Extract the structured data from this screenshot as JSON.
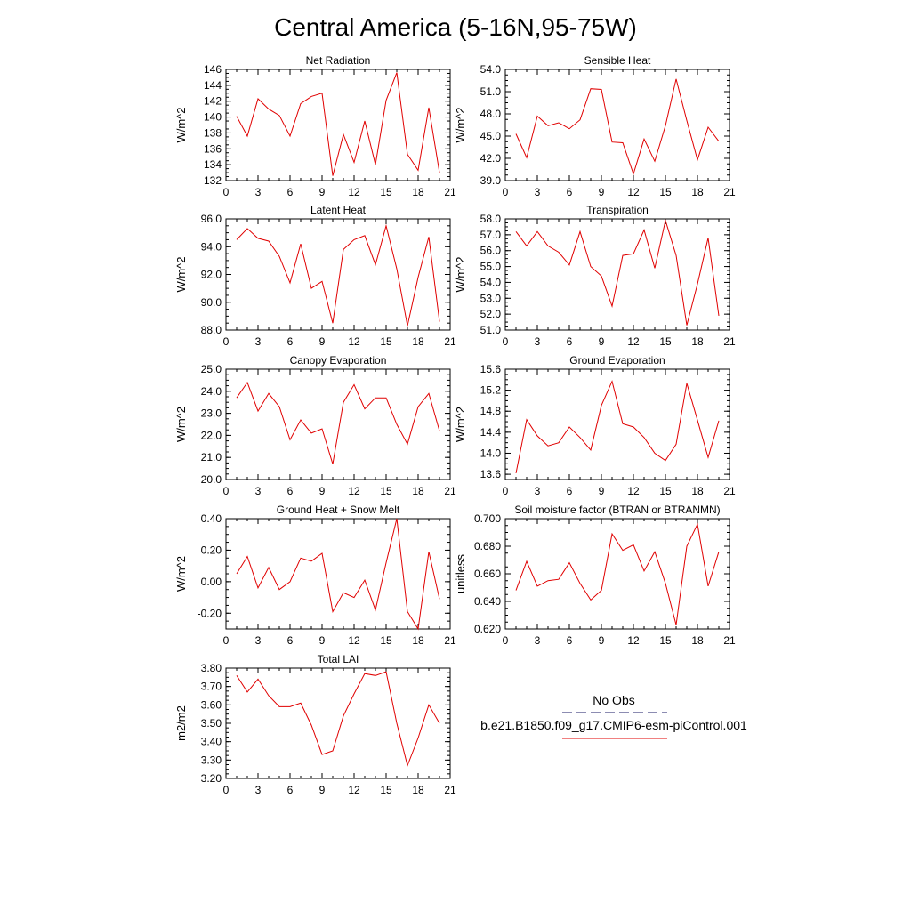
{
  "figure": {
    "title": "Central America (5-16N,95-75W)"
  },
  "legend": {
    "entries": [
      {
        "label": "No Obs",
        "color": "#1a1a66",
        "style": "dashed"
      },
      {
        "label": "b.e21.B1850.f09_g17.CMIP6-esm-piControl.001",
        "color": "#e00000",
        "style": "solid"
      }
    ]
  },
  "chart_data": [
    {
      "type": "line",
      "title": "Net Radiation",
      "xlabel": "",
      "ylabel": "W/m^2",
      "xlim": [
        0,
        21
      ],
      "ylim": [
        132,
        146
      ],
      "xticks": [
        "0",
        "3",
        "6",
        "9",
        "12",
        "15",
        "18",
        "21"
      ],
      "yticks": [
        "132",
        "134",
        "136",
        "138",
        "140",
        "142",
        "144",
        "146"
      ],
      "x": [
        1,
        2,
        3,
        4,
        5,
        6,
        7,
        8,
        9,
        10,
        11,
        12,
        13,
        14,
        15,
        16,
        17,
        18,
        19,
        20
      ],
      "series": [
        {
          "name": "b.e21.B1850.f09_g17.CMIP6-esm-piControl.001",
          "values": [
            140.1,
            137.6,
            142.3,
            141.0,
            140.2,
            137.6,
            141.7,
            142.6,
            143.0,
            132.6,
            137.8,
            134.3,
            139.5,
            134.0,
            142.1,
            145.6,
            135.3,
            133.3,
            141.2,
            133.0
          ]
        }
      ]
    },
    {
      "type": "line",
      "title": "Sensible Heat",
      "xlabel": "",
      "ylabel": "W/m^2",
      "xlim": [
        0,
        21
      ],
      "ylim": [
        39,
        54
      ],
      "xticks": [
        "0",
        "3",
        "6",
        "9",
        "12",
        "15",
        "18",
        "21"
      ],
      "yticks": [
        "39.0",
        "42.0",
        "45.0",
        "48.0",
        "51.0",
        "54.0"
      ],
      "x": [
        1,
        2,
        3,
        4,
        5,
        6,
        7,
        8,
        9,
        10,
        11,
        12,
        13,
        14,
        15,
        16,
        17,
        18,
        19,
        20
      ],
      "series": [
        {
          "name": "b.e21.B1850.f09_g17.CMIP6-esm-piControl.001",
          "values": [
            45.3,
            42.1,
            47.7,
            46.4,
            46.8,
            46.0,
            47.2,
            51.4,
            51.3,
            44.2,
            44.1,
            39.9,
            44.6,
            41.6,
            46.4,
            52.7,
            47.1,
            41.8,
            46.2,
            44.3
          ]
        }
      ]
    },
    {
      "type": "line",
      "title": "Latent Heat",
      "xlabel": "",
      "ylabel": "W/m^2",
      "xlim": [
        0,
        21
      ],
      "ylim": [
        88,
        96
      ],
      "xticks": [
        "0",
        "3",
        "6",
        "9",
        "12",
        "15",
        "18",
        "21"
      ],
      "yticks": [
        "88.0",
        "90.0",
        "92.0",
        "94.0",
        "96.0"
      ],
      "x": [
        1,
        2,
        3,
        4,
        5,
        6,
        7,
        8,
        9,
        10,
        11,
        12,
        13,
        14,
        15,
        16,
        17,
        18,
        19,
        20
      ],
      "series": [
        {
          "name": "b.e21.B1850.f09_g17.CMIP6-esm-piControl.001",
          "values": [
            94.5,
            95.3,
            94.6,
            94.4,
            93.3,
            91.4,
            94.2,
            91.0,
            91.5,
            88.5,
            93.8,
            94.5,
            94.8,
            92.7,
            95.5,
            92.4,
            88.3,
            91.8,
            94.7,
            88.6
          ]
        }
      ]
    },
    {
      "type": "line",
      "title": "Transpiration",
      "xlabel": "",
      "ylabel": "W/m^2",
      "xlim": [
        0,
        21
      ],
      "ylim": [
        51,
        58
      ],
      "xticks": [
        "0",
        "3",
        "6",
        "9",
        "12",
        "15",
        "18",
        "21"
      ],
      "yticks": [
        "51.0",
        "52.0",
        "53.0",
        "54.0",
        "55.0",
        "56.0",
        "57.0",
        "58.0"
      ],
      "x": [
        1,
        2,
        3,
        4,
        5,
        6,
        7,
        8,
        9,
        10,
        11,
        12,
        13,
        14,
        15,
        16,
        17,
        18,
        19,
        20
      ],
      "series": [
        {
          "name": "b.e21.B1850.f09_g17.CMIP6-esm-piControl.001",
          "values": [
            57.2,
            56.3,
            57.2,
            56.3,
            55.9,
            55.1,
            57.2,
            55.0,
            54.4,
            52.5,
            55.7,
            55.8,
            57.3,
            54.9,
            57.9,
            55.7,
            51.3,
            53.9,
            56.8,
            51.9
          ]
        }
      ]
    },
    {
      "type": "line",
      "title": "Canopy Evaporation",
      "xlabel": "",
      "ylabel": "W/m^2",
      "xlim": [
        0,
        21
      ],
      "ylim": [
        20,
        25
      ],
      "xticks": [
        "0",
        "3",
        "6",
        "9",
        "12",
        "15",
        "18",
        "21"
      ],
      "yticks": [
        "20.0",
        "21.0",
        "22.0",
        "23.0",
        "24.0",
        "25.0"
      ],
      "x": [
        1,
        2,
        3,
        4,
        5,
        6,
        7,
        8,
        9,
        10,
        11,
        12,
        13,
        14,
        15,
        16,
        17,
        18,
        19,
        20
      ],
      "series": [
        {
          "name": "b.e21.B1850.f09_g17.CMIP6-esm-piControl.001",
          "values": [
            23.7,
            24.4,
            23.1,
            23.9,
            23.3,
            21.8,
            22.7,
            22.1,
            22.3,
            20.7,
            23.5,
            24.3,
            23.2,
            23.7,
            23.7,
            22.5,
            21.6,
            23.3,
            23.9,
            22.2
          ]
        }
      ]
    },
    {
      "type": "line",
      "title": "Ground Evaporation",
      "xlabel": "",
      "ylabel": "W/m^2",
      "xlim": [
        0,
        21
      ],
      "ylim": [
        13.5,
        15.6
      ],
      "xticks": [
        "0",
        "3",
        "6",
        "9",
        "12",
        "15",
        "18",
        "21"
      ],
      "yticks": [
        "13.6",
        "14.0",
        "14.4",
        "14.8",
        "15.2",
        "15.6"
      ],
      "x": [
        1,
        2,
        3,
        4,
        5,
        6,
        7,
        8,
        9,
        10,
        11,
        12,
        13,
        14,
        15,
        16,
        17,
        18,
        19,
        20
      ],
      "series": [
        {
          "name": "b.e21.B1850.f09_g17.CMIP6-esm-piControl.001",
          "values": [
            13.62,
            14.64,
            14.33,
            14.14,
            14.2,
            14.5,
            14.3,
            14.06,
            14.91,
            15.37,
            14.56,
            14.5,
            14.3,
            14.0,
            13.86,
            14.17,
            15.33,
            14.63,
            13.92,
            14.62
          ]
        }
      ]
    },
    {
      "type": "line",
      "title": "Ground Heat + Snow Melt",
      "xlabel": "",
      "ylabel": "W/m^2",
      "xlim": [
        0,
        21
      ],
      "ylim": [
        -0.3,
        0.4
      ],
      "xticks": [
        "0",
        "3",
        "6",
        "9",
        "12",
        "15",
        "18",
        "21"
      ],
      "yticks": [
        "-0.20",
        "0.00",
        "0.20",
        "0.40"
      ],
      "x": [
        1,
        2,
        3,
        4,
        5,
        6,
        7,
        8,
        9,
        10,
        11,
        12,
        13,
        14,
        15,
        16,
        17,
        18,
        19,
        20
      ],
      "series": [
        {
          "name": "b.e21.B1850.f09_g17.CMIP6-esm-piControl.001",
          "values": [
            0.05,
            0.16,
            -0.04,
            0.09,
            -0.05,
            0.0,
            0.15,
            0.13,
            0.18,
            -0.19,
            -0.07,
            -0.1,
            0.01,
            -0.18,
            0.12,
            0.4,
            -0.19,
            -0.3,
            0.19,
            -0.11
          ]
        }
      ]
    },
    {
      "type": "line",
      "title": "Soil moisture factor (BTRAN or BTRANMN)",
      "xlabel": "",
      "ylabel": "unitless",
      "xlim": [
        0,
        21
      ],
      "ylim": [
        0.62,
        0.7
      ],
      "xticks": [
        "0",
        "3",
        "6",
        "9",
        "12",
        "15",
        "18",
        "21"
      ],
      "yticks": [
        "0.620",
        "0.640",
        "0.660",
        "0.680",
        "0.700"
      ],
      "x": [
        1,
        2,
        3,
        4,
        5,
        6,
        7,
        8,
        9,
        10,
        11,
        12,
        13,
        14,
        15,
        16,
        17,
        18,
        19,
        20
      ],
      "series": [
        {
          "name": "b.e21.B1850.f09_g17.CMIP6-esm-piControl.001",
          "values": [
            0.648,
            0.669,
            0.651,
            0.655,
            0.656,
            0.668,
            0.653,
            0.641,
            0.648,
            0.689,
            0.677,
            0.681,
            0.662,
            0.676,
            0.653,
            0.623,
            0.68,
            0.696,
            0.651,
            0.676
          ]
        }
      ]
    },
    {
      "type": "line",
      "title": "Total LAI",
      "xlabel": "",
      "ylabel": "m2/m2",
      "xlim": [
        0,
        21
      ],
      "ylim": [
        3.2,
        3.8
      ],
      "xticks": [
        "0",
        "3",
        "6",
        "9",
        "12",
        "15",
        "18",
        "21"
      ],
      "yticks": [
        "3.20",
        "3.30",
        "3.40",
        "3.50",
        "3.60",
        "3.70",
        "3.80"
      ],
      "x": [
        1,
        2,
        3,
        4,
        5,
        6,
        7,
        8,
        9,
        10,
        11,
        12,
        13,
        14,
        15,
        16,
        17,
        18,
        19,
        20
      ],
      "series": [
        {
          "name": "b.e21.B1850.f09_g17.CMIP6-esm-piControl.001",
          "values": [
            3.76,
            3.67,
            3.74,
            3.65,
            3.59,
            3.59,
            3.61,
            3.49,
            3.33,
            3.35,
            3.54,
            3.66,
            3.77,
            3.76,
            3.78,
            3.5,
            3.27,
            3.42,
            3.6,
            3.5
          ]
        }
      ]
    }
  ]
}
